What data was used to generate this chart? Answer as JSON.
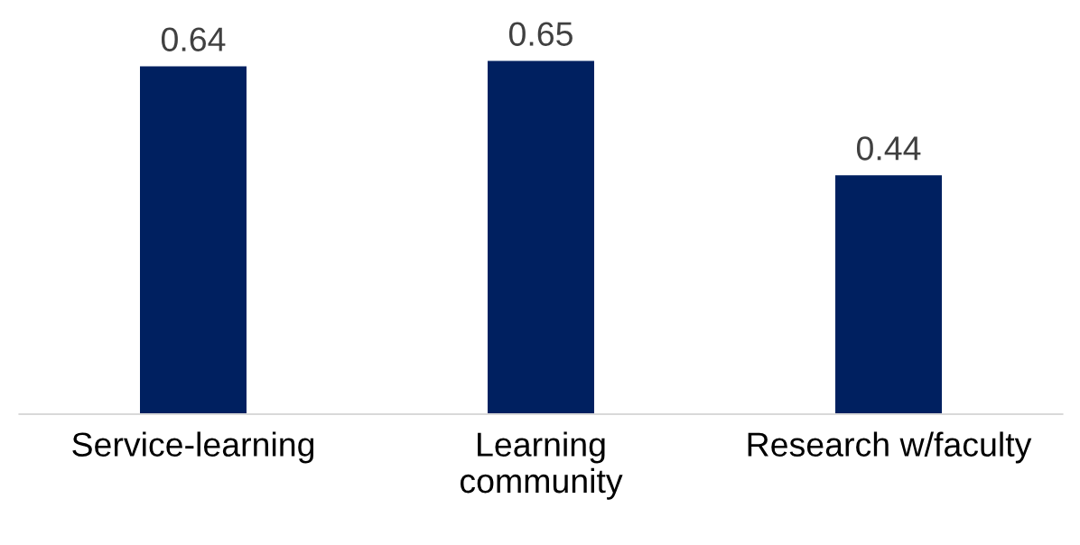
{
  "chart_data": {
    "type": "bar",
    "categories": [
      "Service-learning",
      "Learning\ncommunity",
      "Research w/faculty"
    ],
    "values": [
      0.64,
      0.65,
      0.44
    ],
    "color": "#002060",
    "data_labels": true,
    "grid": false,
    "legend": false
  }
}
